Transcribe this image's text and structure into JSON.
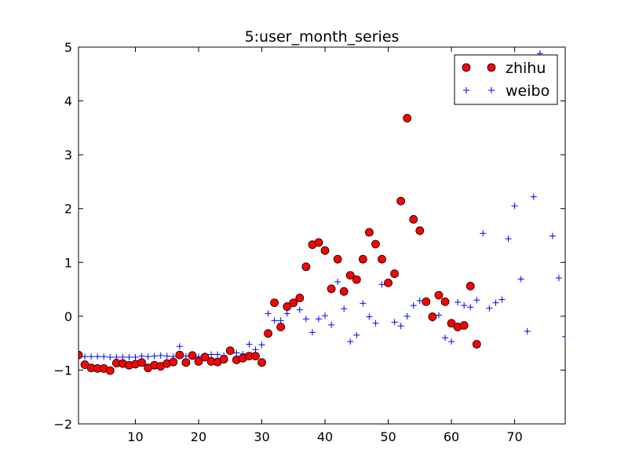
{
  "chart_data": {
    "type": "scatter",
    "title": "5:user_month_series",
    "xlabel": "",
    "ylabel": "",
    "xlim": [
      1,
      78
    ],
    "ylim": [
      -2,
      5
    ],
    "xticks": [
      10,
      20,
      30,
      40,
      50,
      60,
      70
    ],
    "yticks": [
      -2,
      -1,
      0,
      1,
      2,
      3,
      4,
      5
    ],
    "grid": false,
    "legend": {
      "placement": "top-right"
    },
    "series": [
      {
        "name": "zhihu",
        "marker": "circle",
        "color": "#ff0000",
        "edge_color": "#000000",
        "points": [
          [
            1,
            -0.72
          ],
          [
            2,
            -0.9
          ],
          [
            3,
            -0.96
          ],
          [
            4,
            -0.97
          ],
          [
            5,
            -0.97
          ],
          [
            6,
            -1.01
          ],
          [
            7,
            -0.87
          ],
          [
            8,
            -0.88
          ],
          [
            9,
            -0.91
          ],
          [
            10,
            -0.89
          ],
          [
            11,
            -0.86
          ],
          [
            12,
            -0.96
          ],
          [
            13,
            -0.91
          ],
          [
            14,
            -0.93
          ],
          [
            15,
            -0.88
          ],
          [
            16,
            -0.85
          ],
          [
            17,
            -0.72
          ],
          [
            18,
            -0.86
          ],
          [
            19,
            -0.73
          ],
          [
            20,
            -0.84
          ],
          [
            21,
            -0.76
          ],
          [
            22,
            -0.84
          ],
          [
            23,
            -0.85
          ],
          [
            24,
            -0.8
          ],
          [
            25,
            -0.64
          ],
          [
            26,
            -0.81
          ],
          [
            27,
            -0.78
          ],
          [
            28,
            -0.74
          ],
          [
            29,
            -0.74
          ],
          [
            30,
            -0.86
          ],
          [
            31,
            -0.32
          ],
          [
            32,
            0.25
          ],
          [
            33,
            -0.2
          ],
          [
            34,
            0.18
          ],
          [
            35,
            0.25
          ],
          [
            36,
            0.34
          ],
          [
            37,
            0.92
          ],
          [
            38,
            1.33
          ],
          [
            39,
            1.37
          ],
          [
            40,
            1.22
          ],
          [
            41,
            0.51
          ],
          [
            42,
            1.06
          ],
          [
            43,
            0.46
          ],
          [
            44,
            0.76
          ],
          [
            45,
            0.68
          ],
          [
            46,
            1.06
          ],
          [
            47,
            1.56
          ],
          [
            48,
            1.34
          ],
          [
            49,
            1.06
          ],
          [
            50,
            0.62
          ],
          [
            51,
            0.79
          ],
          [
            52,
            2.14
          ],
          [
            53,
            3.68
          ],
          [
            54,
            1.8
          ],
          [
            55,
            1.59
          ],
          [
            56,
            0.27
          ],
          [
            57,
            -0.01
          ],
          [
            58,
            0.39
          ],
          [
            59,
            0.27
          ],
          [
            60,
            -0.13
          ],
          [
            61,
            -0.2
          ],
          [
            62,
            -0.17
          ],
          [
            63,
            0.56
          ],
          [
            64,
            -0.52
          ]
        ]
      },
      {
        "name": "weibo",
        "marker": "plus",
        "color": "#0000ff",
        "points": [
          [
            1,
            -0.74
          ],
          [
            2,
            -0.75
          ],
          [
            3,
            -0.75
          ],
          [
            4,
            -0.75
          ],
          [
            5,
            -0.75
          ],
          [
            6,
            -0.76
          ],
          [
            7,
            -0.76
          ],
          [
            8,
            -0.76
          ],
          [
            9,
            -0.76
          ],
          [
            10,
            -0.76
          ],
          [
            11,
            -0.74
          ],
          [
            12,
            -0.75
          ],
          [
            13,
            -0.74
          ],
          [
            14,
            -0.73
          ],
          [
            15,
            -0.74
          ],
          [
            16,
            -0.75
          ],
          [
            17,
            -0.56
          ],
          [
            18,
            -0.74
          ],
          [
            19,
            -0.73
          ],
          [
            20,
            -0.75
          ],
          [
            21,
            -0.73
          ],
          [
            22,
            -0.71
          ],
          [
            23,
            -0.71
          ],
          [
            24,
            -0.73
          ],
          [
            25,
            -0.66
          ],
          [
            26,
            -0.68
          ],
          [
            27,
            -0.7
          ],
          [
            28,
            -0.52
          ],
          [
            29,
            -0.62
          ],
          [
            30,
            -0.53
          ],
          [
            31,
            0.05
          ],
          [
            32,
            -0.08
          ],
          [
            33,
            -0.08
          ],
          [
            34,
            0.05
          ],
          [
            35,
            0.26
          ],
          [
            36,
            0.12
          ],
          [
            37,
            -0.05
          ],
          [
            38,
            -0.3
          ],
          [
            39,
            -0.05
          ],
          [
            40,
            0.01
          ],
          [
            41,
            -0.16
          ],
          [
            42,
            0.64
          ],
          [
            43,
            0.14
          ],
          [
            44,
            -0.47
          ],
          [
            45,
            -0.35
          ],
          [
            46,
            0.24
          ],
          [
            47,
            -0.01
          ],
          [
            48,
            -0.13
          ],
          [
            49,
            0.59
          ],
          [
            50,
            0.63
          ],
          [
            51,
            -0.11
          ],
          [
            52,
            -0.18
          ],
          [
            53,
            0.0
          ],
          [
            54,
            0.2
          ],
          [
            55,
            0.29
          ],
          [
            56,
            0.26
          ],
          [
            57,
            -0.04
          ],
          [
            58,
            0.02
          ],
          [
            59,
            -0.4
          ],
          [
            60,
            -0.47
          ],
          [
            61,
            0.26
          ],
          [
            62,
            0.2
          ],
          [
            63,
            0.17
          ],
          [
            64,
            0.3
          ],
          [
            65,
            1.54
          ],
          [
            66,
            0.15
          ],
          [
            67,
            0.25
          ],
          [
            68,
            0.31
          ],
          [
            69,
            1.44
          ],
          [
            70,
            2.05
          ],
          [
            71,
            0.69
          ],
          [
            72,
            -0.28
          ],
          [
            73,
            2.22
          ],
          [
            74,
            4.88
          ],
          [
            76,
            1.49
          ],
          [
            77,
            0.71
          ],
          [
            78,
            -0.38
          ]
        ]
      }
    ]
  }
}
